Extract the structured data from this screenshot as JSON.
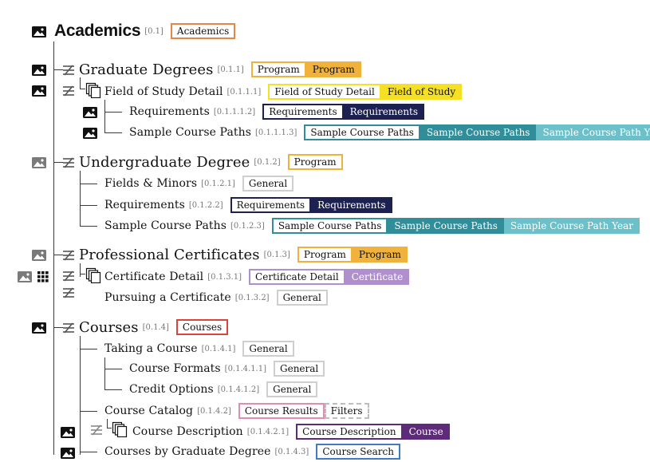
{
  "colors": {
    "program": "#f0b23a",
    "field_of_study": "#f5e023",
    "requirements": "#1d2152",
    "sample_paths": "#2f8e99",
    "sample_year": "#6bc0c9",
    "certificate": "#b08fcf",
    "courses_red": "#d9453b",
    "academics_orange": "#e58645",
    "course_results_pink": "#e38ab5",
    "course_purple": "#5e2b7a",
    "general_border": "#cfcfcf",
    "filters_border": "#bdbdbd",
    "course_search_blue": "#3f7cc7"
  },
  "icons": {
    "image": "image-icon",
    "grid": "grid-icon",
    "mapping": "mapping-icon",
    "pages": "multiple-pages-icon"
  },
  "nodes": [
    {
      "id": "academics",
      "label": "Academics",
      "code": "[0.1]",
      "tags": [
        {
          "text": "Academics"
        }
      ]
    },
    {
      "id": "graduate-degrees",
      "label": "Graduate Degrees",
      "code": "[0.1.1]",
      "tags": [
        {
          "text": "Program"
        },
        {
          "text": "Program"
        }
      ]
    },
    {
      "id": "field-of-study-detail",
      "label": "Field of Study Detail",
      "code": "[0.1.1.1]",
      "tags": [
        {
          "text": "Field of Study Detail"
        },
        {
          "text": "Field of Study"
        }
      ]
    },
    {
      "id": "requirements-grad",
      "label": "Requirements",
      "code": "[0.1.1.1.2]",
      "tags": [
        {
          "text": "Requirements"
        },
        {
          "text": "Requirements"
        }
      ]
    },
    {
      "id": "sample-paths-grad",
      "label": "Sample Course Paths",
      "code": "[0.1.1.1.3]",
      "tags": [
        {
          "text": "Sample Course Paths"
        },
        {
          "text": "Sample Course Paths"
        },
        {
          "text": "Sample Course Path Year"
        }
      ]
    },
    {
      "id": "undergraduate-degree",
      "label": "Undergraduate Degree",
      "code": "[0.1.2]",
      "tags": [
        {
          "text": "Program"
        }
      ]
    },
    {
      "id": "fields-minors",
      "label": "Fields & Minors",
      "code": "[0.1.2.1]",
      "tags": [
        {
          "text": "General"
        }
      ]
    },
    {
      "id": "requirements-ug",
      "label": "Requirements",
      "code": "[0.1.2.2]",
      "tags": [
        {
          "text": "Requirements"
        },
        {
          "text": "Requirements"
        }
      ]
    },
    {
      "id": "sample-paths-ug",
      "label": "Sample Course Paths",
      "code": "[0.1.2.3]",
      "tags": [
        {
          "text": "Sample Course Paths"
        },
        {
          "text": "Sample Course Paths"
        },
        {
          "text": "Sample Course Path Year"
        }
      ]
    },
    {
      "id": "professional-certificates",
      "label": "Professional Certificates",
      "code": "[0.1.3]",
      "tags": [
        {
          "text": "Program"
        },
        {
          "text": "Program"
        }
      ]
    },
    {
      "id": "certificate-detail",
      "label": "Certificate Detail",
      "code": "[0.1.3.1]",
      "tags": [
        {
          "text": "Certificate Detail"
        },
        {
          "text": "Certificate"
        }
      ]
    },
    {
      "id": "pursuing-certificate",
      "label": "Pursuing a Certificate",
      "code": "[0.1.3.2]",
      "tags": [
        {
          "text": "General"
        }
      ]
    },
    {
      "id": "courses",
      "label": "Courses",
      "code": "[0.1.4]",
      "tags": [
        {
          "text": "Courses"
        }
      ]
    },
    {
      "id": "taking-a-course",
      "label": "Taking a Course",
      "code": "[0.1.4.1]",
      "tags": [
        {
          "text": "General"
        }
      ]
    },
    {
      "id": "course-formats",
      "label": "Course Formats",
      "code": "[0.1.4.1.1]",
      "tags": [
        {
          "text": "General"
        }
      ]
    },
    {
      "id": "credit-options",
      "label": "Credit Options",
      "code": "[0.1.4.1.2]",
      "tags": [
        {
          "text": "General"
        }
      ]
    },
    {
      "id": "course-catalog",
      "label": "Course Catalog",
      "code": "[0.1.4.2]",
      "tags": [
        {
          "text": "Course Results"
        },
        {
          "text": "Filters"
        }
      ]
    },
    {
      "id": "course-description",
      "label": "Course Description",
      "code": "[0.1.4.2.1]",
      "tags": [
        {
          "text": "Course Description"
        },
        {
          "text": "Course"
        }
      ]
    },
    {
      "id": "courses-by-grad-degree",
      "label": "Courses by Graduate Degree",
      "code": "[0.1.4.3]",
      "tags": [
        {
          "text": "Course Search"
        }
      ]
    }
  ]
}
